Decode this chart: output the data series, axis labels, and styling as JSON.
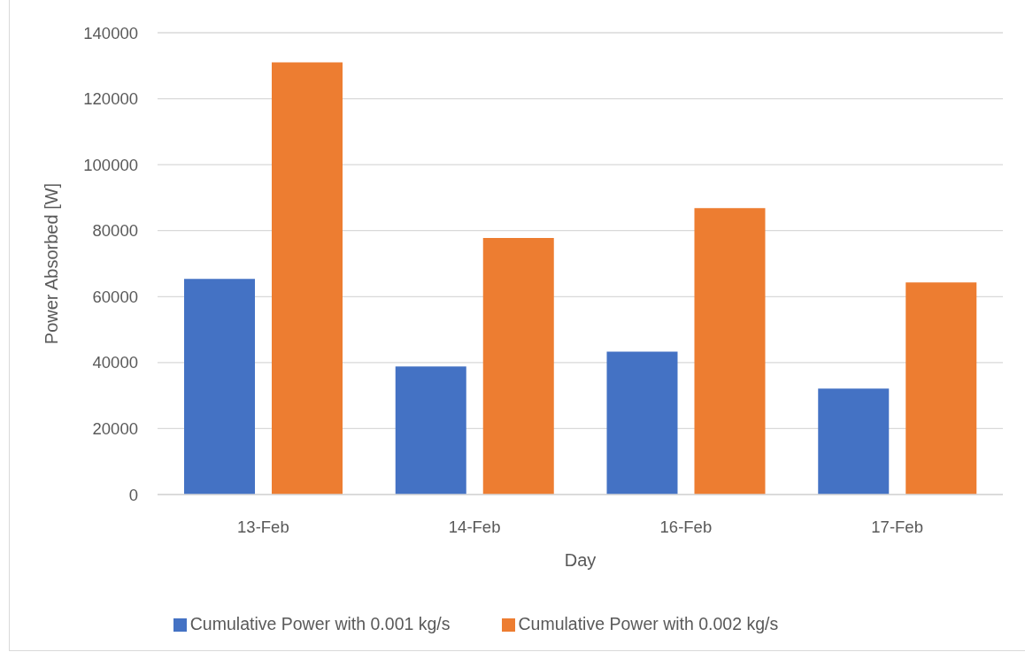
{
  "chart_data": {
    "type": "bar",
    "xlabel": "Day",
    "ylabel": "Power Absorbed [W]",
    "categories": [
      "13-Feb",
      "14-Feb",
      "16-Feb",
      "17-Feb"
    ],
    "series": [
      {
        "name": "Cumulative Power with 0.001 kg/s",
        "color": "#4472c4",
        "values": [
          65400,
          38800,
          43300,
          32100
        ]
      },
      {
        "name": "Cumulative Power with 0.002 kg/s",
        "color": "#ed7d31",
        "values": [
          131000,
          77800,
          86800,
          64300
        ]
      }
    ],
    "ylim": [
      0,
      140000
    ],
    "yticks": [
      0,
      20000,
      40000,
      60000,
      80000,
      100000,
      120000,
      140000
    ],
    "grid": "y",
    "legend": "bottom"
  }
}
